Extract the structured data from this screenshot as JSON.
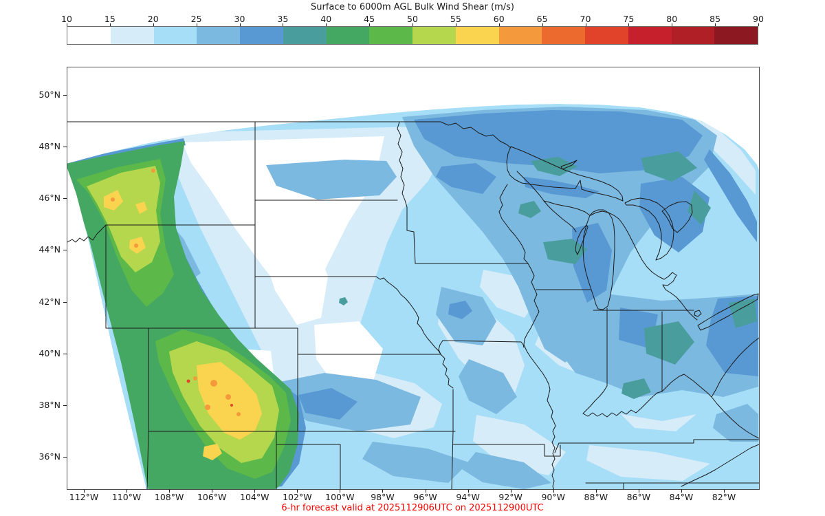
{
  "title": "Surface to 6000m AGL Bulk Wind Shear (m/s)",
  "caption": {
    "text": "6-hr forecast valid at 2025112906UTC on 2025112900UTC",
    "color": "#ff0000"
  },
  "colorbar": {
    "units": "m/s",
    "tick_labels": [
      "10",
      "15",
      "20",
      "25",
      "30",
      "35",
      "40",
      "45",
      "50",
      "55",
      "60",
      "65",
      "70",
      "75",
      "80",
      "85",
      "90"
    ],
    "bin_colors": [
      "#ffffff",
      "#d6ecf8",
      "#a6ddf7",
      "#7cb9e0",
      "#5899d3",
      "#4a9d9d",
      "#44a862",
      "#5cb848",
      "#b5d74e",
      "#fad44e",
      "#f49a3c",
      "#ed6a2e",
      "#e0432a",
      "#c5202b",
      "#b01f26",
      "#8c1822"
    ]
  },
  "map": {
    "x_tick_labels": [
      "112°W",
      "110°W",
      "108°W",
      "106°W",
      "104°W",
      "102°W",
      "100°W",
      "98°W",
      "96°W",
      "94°W",
      "92°W",
      "90°W",
      "88°W",
      "86°W",
      "84°W",
      "82°W"
    ],
    "y_tick_labels": [
      "50°N",
      "48°N",
      "46°N",
      "44°N",
      "42°N",
      "40°N",
      "38°N",
      "36°N"
    ],
    "frame_color": "#4d4d4d",
    "border_color": "#1a1a1a"
  },
  "chart_data": {
    "type": "heatmap",
    "title": "Surface to 6000m AGL Bulk Wind Shear (m/s)",
    "colorbar_ticks": [
      10,
      15,
      20,
      25,
      30,
      35,
      40,
      45,
      50,
      55,
      60,
      65,
      70,
      75,
      80,
      85,
      90
    ],
    "units": "m/s",
    "lat_range_deg_n": [
      34.8,
      51.1
    ],
    "lon_range_deg_w": [
      112.8,
      80.4
    ],
    "grid": false,
    "legend_position": "top horizontal colorbar",
    "regions": [
      {
        "area": "western Montana / northern Rockies band",
        "shear_ms": "40-60"
      },
      {
        "area": "Colorado Rockies core",
        "shear_ms": "45-65, isolated 70+ specks"
      },
      {
        "area": "eastern Montana / northeast Wyoming lee side",
        "shear_ms": "under 15"
      },
      {
        "area": "central South Dakota, Nebraska, Kansas pockets",
        "shear_ms": "10-20"
      },
      {
        "area": "North Dakota / Minnesota / Wisconsin / Michigan",
        "shear_ms": "25-35"
      },
      {
        "area": "upper Michigan and Lake Superior vicinity, Ontario",
        "shear_ms": "35-40"
      },
      {
        "area": "Ohio and eastern Great Lakes",
        "shear_ms": "30-40"
      },
      {
        "area": "Iowa / Missouri / Illinois",
        "shear_ms": "15-30"
      },
      {
        "area": "Kentucky / Tennessee / Arkansas",
        "shear_ms": "20-30"
      },
      {
        "area": "northeast domain corner",
        "shear_ms": "tapers to under 15 at edge"
      }
    ]
  }
}
